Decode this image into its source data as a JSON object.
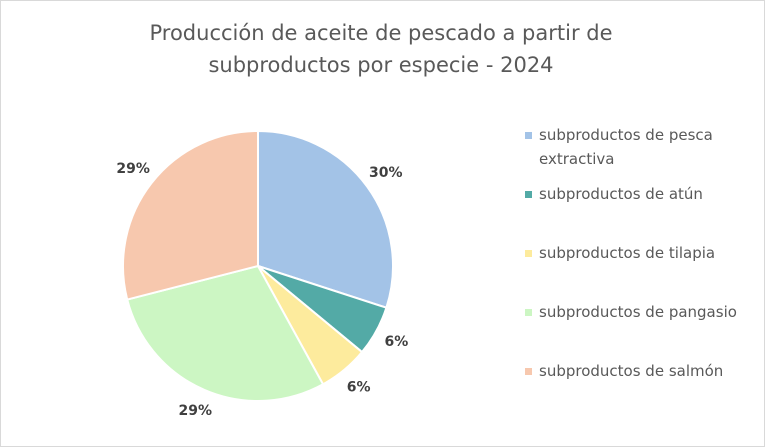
{
  "chart_data": {
    "type": "pie",
    "title": "Producción de aceite de pescado a partir de subproductos por especie - 2024",
    "categories": [
      "subproductos de pesca extractiva",
      "subproductos de atún",
      "subproductos de tilapia",
      "subproductos de pangasio",
      "subproductos de salmón"
    ],
    "values": [
      30,
      6,
      6,
      29,
      29
    ],
    "value_labels": [
      "30%",
      "6%",
      "6%",
      "29%",
      "29%"
    ],
    "colors": [
      "#a3c3e7",
      "#53aaa6",
      "#fdeb9d",
      "#ccf6c3",
      "#f7c8ae"
    ]
  }
}
